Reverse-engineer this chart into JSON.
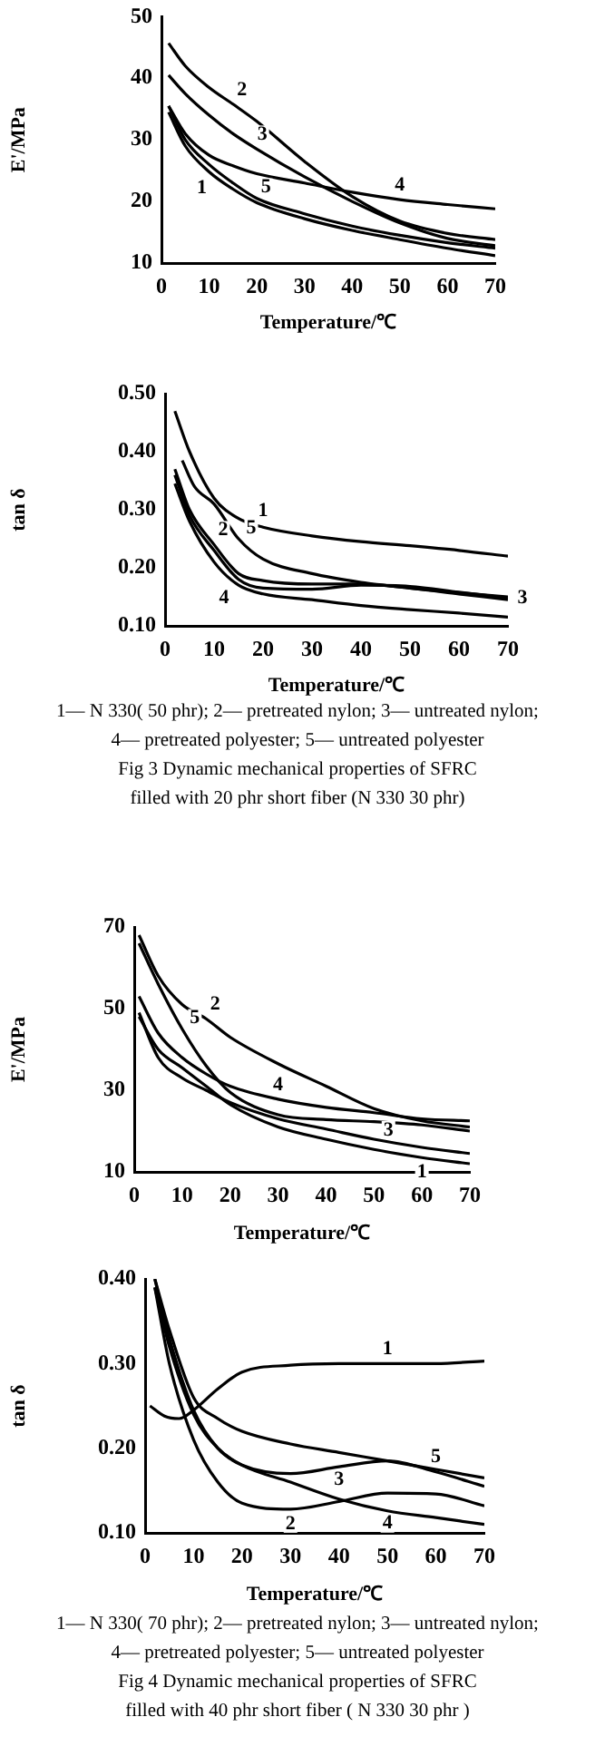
{
  "chart_data": [
    {
      "type": "line",
      "xlabel": "Temperature/℃",
      "ylabel": "E'/MPa",
      "xlim": [
        0,
        70
      ],
      "xticks": [
        0,
        10,
        20,
        30,
        40,
        50,
        60,
        70
      ],
      "ylim": [
        10,
        50
      ],
      "yticks": [
        10,
        20,
        30,
        40,
        50
      ],
      "grid": false,
      "legend": false,
      "marker": "none",
      "line_style": "solid",
      "x": [
        1.5,
        5,
        10,
        15,
        20,
        30,
        40,
        50,
        60,
        70
      ],
      "series": [
        {
          "name": "1",
          "color": "#000000",
          "values": [
            34.5,
            29,
            24.8,
            22,
            19.8,
            17.2,
            15.3,
            13.8,
            12.4,
            11.2
          ]
        },
        {
          "name": "2",
          "color": "#000000",
          "values": [
            45.7,
            42,
            38.5,
            35.8,
            33,
            26.5,
            20.8,
            16.8,
            14.8,
            13.8
          ]
        },
        {
          "name": "3",
          "color": "#000000",
          "values": [
            40.5,
            37.5,
            34,
            31,
            28.5,
            24,
            20,
            16.5,
            14,
            12.8
          ]
        },
        {
          "name": "4",
          "color": "#000000",
          "values": [
            35.5,
            31,
            27.5,
            25.8,
            24.5,
            23,
            21.5,
            20.3,
            19.5,
            18.8
          ]
        },
        {
          "name": "5",
          "color": "#000000",
          "values": [
            35.5,
            30,
            26,
            23,
            20.5,
            18,
            16,
            14.5,
            13.3,
            12.4
          ]
        }
      ]
    },
    {
      "type": "line",
      "xlabel": "Temperature/℃",
      "ylabel": "tan δ",
      "xlim": [
        0,
        70
      ],
      "xticks": [
        0,
        10,
        20,
        30,
        40,
        50,
        60,
        70
      ],
      "ylim": [
        0.1,
        0.5
      ],
      "yticks": [
        {
          "value": 0.1,
          "label": "0.10"
        },
        {
          "value": 0.2,
          "label": "0.20"
        },
        {
          "value": 0.3,
          "label": "0.30"
        },
        {
          "value": 0.4,
          "label": "0.40"
        },
        {
          "value": 0.5,
          "label": "0.50"
        }
      ],
      "grid": false,
      "legend": false,
      "marker": "none",
      "line_style": "solid",
      "x": [
        2,
        5,
        10,
        15,
        20,
        30,
        40,
        50,
        60,
        70
      ],
      "series": [
        {
          "name": "1",
          "color": "#000000",
          "values": [
            0.47,
            0.4,
            0.32,
            0.285,
            0.27,
            0.255,
            0.245,
            0.238,
            0.23,
            0.22
          ]
        },
        {
          "name": "2",
          "color": "#000000",
          "values": [
            0.37,
            0.3,
            0.24,
            0.19,
            0.178,
            0.172,
            0.172,
            0.165,
            0.155,
            0.145
          ]
        },
        {
          "name": "3",
          "color": "#000000",
          "values": [
            0.36,
            0.29,
            0.23,
            0.18,
            0.165,
            0.163,
            0.17,
            0.168,
            0.158,
            0.148
          ]
        },
        {
          "name": "4",
          "color": "#000000",
          "values": [
            0.345,
            0.28,
            0.21,
            0.17,
            0.155,
            0.145,
            0.135,
            0.128,
            0.122,
            0.115
          ]
        },
        {
          "name": "5",
          "color": "#000000",
          "x": [
            3.5,
            6,
            10,
            15,
            20,
            30,
            40,
            50,
            60,
            70
          ],
          "values": [
            0.385,
            0.34,
            0.31,
            0.25,
            0.215,
            0.19,
            0.175,
            0.165,
            0.157,
            0.15
          ]
        }
      ],
      "annotations": [
        "1— N 330( 50 phr); 2— pretreated nylon; 3— untreated nylon;",
        "4— pretreated polyester; 5— untreated polyester",
        "Fig 3   Dynamic mechanical properties of SFRC",
        "filled with 20 phr short fiber (N 330 30 phr)"
      ]
    },
    {
      "type": "line",
      "xlabel": "Temperature/℃",
      "ylabel": "E'/MPa",
      "xlim": [
        0,
        70
      ],
      "xticks": [
        0,
        10,
        20,
        30,
        40,
        50,
        60,
        70
      ],
      "ylim": [
        10,
        70
      ],
      "yticks": [
        10,
        30,
        50,
        70
      ],
      "grid": false,
      "legend": false,
      "marker": "none",
      "line_style": "solid",
      "x": [
        1,
        5,
        10,
        15,
        20,
        30,
        40,
        50,
        60,
        70
      ],
      "series": [
        {
          "name": "1",
          "color": "#000000",
          "values": [
            48,
            40,
            35.5,
            31,
            26.5,
            21,
            18,
            15.5,
            13.5,
            12
          ]
        },
        {
          "name": "2",
          "color": "#000000",
          "values": [
            68,
            58,
            51,
            47.5,
            43,
            36.5,
            31,
            25.5,
            22.5,
            21
          ]
        },
        {
          "name": "3",
          "color": "#000000",
          "values": [
            49,
            38,
            33,
            30,
            27,
            23,
            20.5,
            18,
            16,
            14.5
          ]
        },
        {
          "name": "4",
          "color": "#000000",
          "values": [
            53,
            44,
            38,
            34,
            31,
            27.8,
            25.8,
            24.5,
            23,
            22.5
          ]
        },
        {
          "name": "5",
          "color": "#000000",
          "values": [
            66,
            56,
            45,
            36,
            29.5,
            24,
            22.8,
            22.3,
            21.5,
            20
          ]
        }
      ]
    },
    {
      "type": "line",
      "xlabel": "Temperature/℃",
      "ylabel": "tan δ",
      "xlim": [
        0,
        70
      ],
      "xticks": [
        0,
        10,
        20,
        30,
        40,
        50,
        60,
        70
      ],
      "ylim": [
        0.1,
        0.4
      ],
      "yticks": [
        {
          "value": 0.1,
          "label": "0.10"
        },
        {
          "value": 0.2,
          "label": "0.20"
        },
        {
          "value": 0.3,
          "label": "0.30"
        },
        {
          "value": 0.4,
          "label": "0.40"
        }
      ],
      "grid": false,
      "legend": false,
      "marker": "none",
      "line_style": "solid",
      "x": [
        2,
        5,
        10,
        15,
        20,
        30,
        40,
        50,
        60,
        70
      ],
      "series": [
        {
          "name": "1",
          "color": "#000000",
          "x": [
            1,
            4,
            7,
            10,
            15,
            20,
            30,
            40,
            50,
            60,
            70
          ],
          "values": [
            0.25,
            0.238,
            0.235,
            0.245,
            0.27,
            0.29,
            0.298,
            0.3,
            0.3,
            0.3,
            0.303
          ]
        },
        {
          "name": "2",
          "color": "#000000",
          "values": [
            0.39,
            0.3,
            0.21,
            0.16,
            0.135,
            0.128,
            0.137,
            0.147,
            0.146,
            0.132
          ]
        },
        {
          "name": "3",
          "color": "#000000",
          "values": [
            0.4,
            0.33,
            0.245,
            0.2,
            0.18,
            0.17,
            0.178,
            0.185,
            0.172,
            0.155
          ]
        },
        {
          "name": "4",
          "color": "#000000",
          "values": [
            0.39,
            0.32,
            0.24,
            0.2,
            0.18,
            0.16,
            0.14,
            0.126,
            0.118,
            0.11
          ]
        },
        {
          "name": "5",
          "color": "#000000",
          "values": [
            0.4,
            0.34,
            0.26,
            0.235,
            0.22,
            0.205,
            0.195,
            0.185,
            0.175,
            0.165
          ]
        }
      ],
      "annotations": [
        "1— N 330( 70 phr); 2— pretreated nylon; 3— untreated nylon;",
        "4— pretreated polyester; 5— untreated polyester",
        "Fig 4   Dynamic mechanical properties of SFRC",
        "filled with 40 phr short fiber ( N 330 30 phr )"
      ]
    }
  ]
}
